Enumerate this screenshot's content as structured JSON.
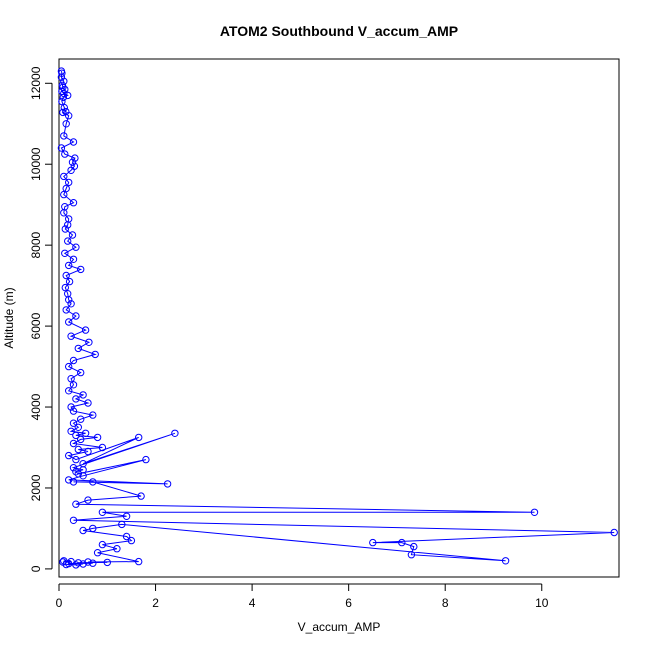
{
  "chart_data": {
    "type": "line",
    "title": "ATOM2 Southbound V_accum_AMP",
    "xlabel": "V_accum_AMP",
    "ylabel": "Altitude (m)",
    "xlim": [
      0,
      11.6
    ],
    "ylim": [
      -200,
      12600
    ],
    "x_ticks": [
      0,
      2,
      4,
      6,
      8,
      10
    ],
    "y_ticks": [
      0,
      2000,
      4000,
      6000,
      8000,
      10000,
      12000
    ],
    "grid": false,
    "marker": "open-circle",
    "series_color": "#0000ff",
    "series": [
      {
        "x": [
          0.05,
          0.06,
          0.05,
          0.1,
          0.07,
          0.08,
          0.12,
          0.06,
          0.1,
          0.18,
          0.09,
          0.06,
          0.11,
          0.14,
          0.08,
          0.2,
          0.15,
          0.1,
          0.3,
          0.05,
          0.12,
          0.33,
          0.28,
          0.32,
          0.25,
          0.1,
          0.2,
          0.15,
          0.1,
          0.3,
          0.12,
          0.1,
          0.2,
          0.18,
          0.13,
          0.28,
          0.18,
          0.35,
          0.12,
          0.3,
          0.2,
          0.45,
          0.15,
          0.22,
          0.13,
          0.18,
          0.2,
          0.25,
          0.15,
          0.35,
          0.2,
          0.55,
          0.25,
          0.62,
          0.4,
          0.75,
          0.3,
          0.2,
          0.45,
          0.25,
          0.3,
          0.2,
          0.5,
          0.35,
          0.6,
          0.25,
          0.3,
          0.7,
          0.45,
          0.3,
          0.4,
          0.25,
          0.55,
          0.35,
          0.8,
          0.45,
          0.3,
          0.9,
          0.4,
          0.6,
          0.2,
          0.35,
          1.65,
          0.5,
          2.4,
          0.3,
          0.5,
          0.35,
          0.4,
          1.8,
          0.5,
          0.2,
          2.25,
          0.3,
          0.7,
          1.7,
          0.6,
          0.35,
          9.85,
          0.9,
          1.4,
          0.3,
          11.5,
          6.5,
          7.1,
          7.35,
          7.3,
          9.25,
          1.3,
          0.7,
          0.5,
          1.4,
          1.5,
          0.9,
          1.2,
          0.8,
          1.65,
          0.6,
          1.0,
          0.4,
          0.7,
          0.2,
          0.5,
          0.15,
          0.35,
          0.1,
          0.25,
          0.08
        ],
        "y": [
          12300,
          12250,
          12150,
          12050,
          11950,
          11900,
          11850,
          11800,
          11750,
          11700,
          11650,
          11550,
          11400,
          11300,
          11280,
          11200,
          11000,
          10700,
          10550,
          10400,
          10250,
          10150,
          10050,
          9950,
          9850,
          9700,
          9550,
          9400,
          9250,
          9050,
          8950,
          8800,
          8650,
          8500,
          8400,
          8250,
          8100,
          7950,
          7800,
          7650,
          7500,
          7400,
          7250,
          7100,
          6950,
          6800,
          6650,
          6550,
          6400,
          6250,
          6100,
          5900,
          5750,
          5600,
          5450,
          5300,
          5150,
          5000,
          4850,
          4700,
          4550,
          4400,
          4300,
          4200,
          4100,
          4000,
          3900,
          3800,
          3700,
          3600,
          3500,
          3400,
          3350,
          3300,
          3250,
          3200,
          3100,
          3000,
          2950,
          2900,
          2800,
          2700,
          3250,
          2600,
          3350,
          2500,
          2450,
          2400,
          2350,
          2700,
          2300,
          2200,
          2100,
          2150,
          2150,
          1800,
          1700,
          1600,
          1400,
          1400,
          1300,
          1200,
          900,
          650,
          650,
          550,
          350,
          200,
          1100,
          1000,
          950,
          800,
          700,
          600,
          500,
          400,
          180,
          170,
          160,
          150,
          140,
          130,
          120,
          110,
          100,
          200,
          180,
          170
        ]
      }
    ]
  }
}
